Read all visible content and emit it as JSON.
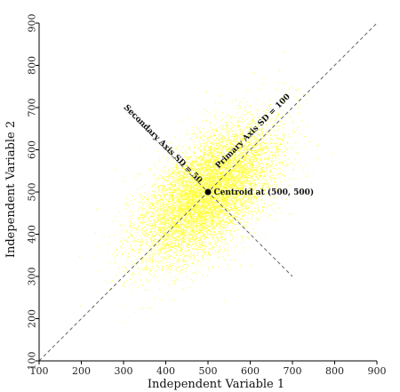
{
  "chart_data": {
    "type": "scatter",
    "title": "",
    "xlabel": "Independent Variable 1",
    "ylabel": "Independent Variable 2",
    "xlim": [
      100,
      900
    ],
    "ylim": [
      100,
      900
    ],
    "x_ticks": [
      "100",
      "200",
      "300",
      "400",
      "500",
      "600",
      "700",
      "800",
      "900"
    ],
    "y_ticks": [
      "100",
      "200",
      "300",
      "400",
      "500",
      "600",
      "700",
      "800",
      "900"
    ],
    "grid": false,
    "point_color": "#ffff33",
    "distribution": {
      "centroid": [
        500,
        500
      ],
      "primary_axis_sd": 100,
      "secondary_axis_sd": 50,
      "primary_axis_angle_deg": 45,
      "approx_point_count": 9000
    },
    "reference_lines": [
      {
        "name": "primary-axis",
        "from": [
          100,
          100
        ],
        "to": [
          900,
          900
        ],
        "style": "dashed"
      },
      {
        "name": "secondary-axis",
        "from": [
          300,
          700
        ],
        "to": [
          700,
          300
        ],
        "style": "dashed"
      }
    ],
    "annotations": [
      {
        "text": "Primary Axis SD = 100",
        "at": [
          610,
          640
        ]
      },
      {
        "text": "Secondary Axis SD = 50",
        "at": [
          390,
          610
        ]
      },
      {
        "text": "Centroid at (500, 500)",
        "at": [
          520,
          500
        ]
      }
    ]
  }
}
